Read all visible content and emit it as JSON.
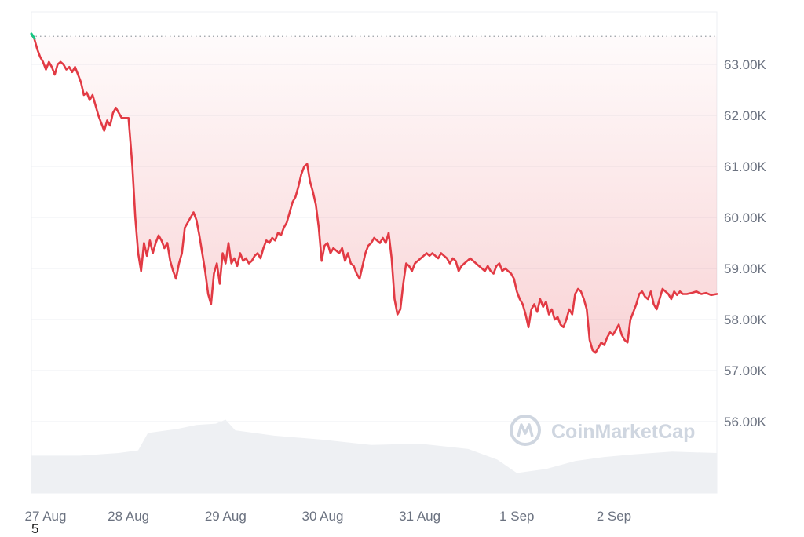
{
  "chart_data": {
    "type": "area",
    "title": "",
    "xlabel": "",
    "ylabel": "",
    "ylim": [
      55000,
      63700
    ],
    "y_ticks": [
      "63.00K",
      "62.00K",
      "61.00K",
      "60.00K",
      "59.00K",
      "58.00K",
      "57.00K",
      "56.00K"
    ],
    "y_tick_values": [
      63000,
      62000,
      61000,
      60000,
      59000,
      58000,
      57000,
      56000
    ],
    "x_ticks": [
      "27 Aug",
      "28 Aug",
      "29 Aug",
      "30 Aug",
      "31 Aug",
      "1 Sep",
      "2 Sep"
    ],
    "x_range_days": [
      0,
      7.06
    ],
    "reference_price": 63550,
    "grid": true,
    "series": [
      {
        "points": [
          [
            0.0,
            63600
          ],
          [
            0.03,
            63500
          ],
          [
            0.06,
            63300
          ],
          [
            0.09,
            63150
          ],
          [
            0.12,
            63050
          ],
          [
            0.15,
            62900
          ],
          [
            0.18,
            63050
          ],
          [
            0.21,
            62950
          ],
          [
            0.24,
            62800
          ],
          [
            0.27,
            63000
          ],
          [
            0.3,
            63050
          ],
          [
            0.33,
            63000
          ],
          [
            0.36,
            62900
          ],
          [
            0.39,
            62950
          ],
          [
            0.42,
            62850
          ],
          [
            0.45,
            62950
          ],
          [
            0.48,
            62800
          ],
          [
            0.51,
            62650
          ],
          [
            0.54,
            62400
          ],
          [
            0.57,
            62450
          ],
          [
            0.6,
            62300
          ],
          [
            0.63,
            62400
          ],
          [
            0.66,
            62200
          ],
          [
            0.69,
            62000
          ],
          [
            0.72,
            61850
          ],
          [
            0.75,
            61700
          ],
          [
            0.78,
            61900
          ],
          [
            0.81,
            61800
          ],
          [
            0.84,
            62050
          ],
          [
            0.87,
            62150
          ],
          [
            0.9,
            62050
          ],
          [
            0.93,
            61950
          ],
          [
            1.0,
            61950
          ],
          [
            1.04,
            61000
          ],
          [
            1.07,
            60000
          ],
          [
            1.1,
            59300
          ],
          [
            1.13,
            58950
          ],
          [
            1.16,
            59500
          ],
          [
            1.19,
            59250
          ],
          [
            1.22,
            59550
          ],
          [
            1.25,
            59300
          ],
          [
            1.28,
            59500
          ],
          [
            1.31,
            59650
          ],
          [
            1.34,
            59550
          ],
          [
            1.37,
            59400
          ],
          [
            1.4,
            59500
          ],
          [
            1.43,
            59150
          ],
          [
            1.46,
            58950
          ],
          [
            1.49,
            58800
          ],
          [
            1.52,
            59100
          ],
          [
            1.55,
            59300
          ],
          [
            1.58,
            59800
          ],
          [
            1.61,
            59900
          ],
          [
            1.64,
            60000
          ],
          [
            1.67,
            60100
          ],
          [
            1.7,
            59950
          ],
          [
            1.73,
            59650
          ],
          [
            1.76,
            59300
          ],
          [
            1.79,
            58950
          ],
          [
            1.82,
            58500
          ],
          [
            1.85,
            58300
          ],
          [
            1.88,
            58900
          ],
          [
            1.91,
            59100
          ],
          [
            1.94,
            58700
          ],
          [
            1.97,
            59300
          ],
          [
            2.0,
            59100
          ],
          [
            2.03,
            59500
          ],
          [
            2.06,
            59100
          ],
          [
            2.09,
            59200
          ],
          [
            2.12,
            59050
          ],
          [
            2.15,
            59300
          ],
          [
            2.18,
            59150
          ],
          [
            2.21,
            59200
          ],
          [
            2.24,
            59100
          ],
          [
            2.27,
            59150
          ],
          [
            2.3,
            59250
          ],
          [
            2.33,
            59300
          ],
          [
            2.36,
            59200
          ],
          [
            2.39,
            59400
          ],
          [
            2.42,
            59550
          ],
          [
            2.45,
            59500
          ],
          [
            2.48,
            59600
          ],
          [
            2.51,
            59550
          ],
          [
            2.54,
            59700
          ],
          [
            2.57,
            59650
          ],
          [
            2.6,
            59800
          ],
          [
            2.63,
            59900
          ],
          [
            2.66,
            60100
          ],
          [
            2.69,
            60300
          ],
          [
            2.72,
            60400
          ],
          [
            2.75,
            60600
          ],
          [
            2.78,
            60850
          ],
          [
            2.81,
            61000
          ],
          [
            2.84,
            61050
          ],
          [
            2.87,
            60700
          ],
          [
            2.9,
            60500
          ],
          [
            2.93,
            60250
          ],
          [
            2.96,
            59800
          ],
          [
            2.99,
            59150
          ],
          [
            3.02,
            59450
          ],
          [
            3.05,
            59500
          ],
          [
            3.08,
            59300
          ],
          [
            3.11,
            59400
          ],
          [
            3.14,
            59350
          ],
          [
            3.17,
            59300
          ],
          [
            3.2,
            59400
          ],
          [
            3.23,
            59150
          ],
          [
            3.26,
            59300
          ],
          [
            3.29,
            59100
          ],
          [
            3.32,
            59050
          ],
          [
            3.35,
            58900
          ],
          [
            3.38,
            58800
          ],
          [
            3.41,
            59050
          ],
          [
            3.44,
            59300
          ],
          [
            3.47,
            59450
          ],
          [
            3.5,
            59500
          ],
          [
            3.53,
            59600
          ],
          [
            3.56,
            59550
          ],
          [
            3.59,
            59500
          ],
          [
            3.62,
            59600
          ],
          [
            3.65,
            59500
          ],
          [
            3.68,
            59700
          ],
          [
            3.71,
            59200
          ],
          [
            3.74,
            58400
          ],
          [
            3.77,
            58100
          ],
          [
            3.8,
            58200
          ],
          [
            3.83,
            58700
          ],
          [
            3.86,
            59100
          ],
          [
            3.89,
            59050
          ],
          [
            3.92,
            58950
          ],
          [
            3.95,
            59100
          ],
          [
            3.98,
            59150
          ],
          [
            4.01,
            59200
          ],
          [
            4.04,
            59250
          ],
          [
            4.07,
            59300
          ],
          [
            4.1,
            59250
          ],
          [
            4.13,
            59300
          ],
          [
            4.16,
            59250
          ],
          [
            4.19,
            59200
          ],
          [
            4.22,
            59300
          ],
          [
            4.25,
            59250
          ],
          [
            4.28,
            59200
          ],
          [
            4.31,
            59100
          ],
          [
            4.34,
            59200
          ],
          [
            4.37,
            59150
          ],
          [
            4.4,
            58950
          ],
          [
            4.43,
            59050
          ],
          [
            4.46,
            59100
          ],
          [
            4.49,
            59150
          ],
          [
            4.52,
            59200
          ],
          [
            4.55,
            59150
          ],
          [
            4.58,
            59100
          ],
          [
            4.61,
            59050
          ],
          [
            4.64,
            59000
          ],
          [
            4.67,
            58950
          ],
          [
            4.7,
            59050
          ],
          [
            4.73,
            58950
          ],
          [
            4.76,
            58900
          ],
          [
            4.79,
            59050
          ],
          [
            4.82,
            59100
          ],
          [
            4.85,
            58950
          ],
          [
            4.88,
            59000
          ],
          [
            4.91,
            58950
          ],
          [
            4.94,
            58900
          ],
          [
            4.97,
            58800
          ],
          [
            5.0,
            58550
          ],
          [
            5.03,
            58400
          ],
          [
            5.06,
            58300
          ],
          [
            5.09,
            58100
          ],
          [
            5.12,
            57850
          ],
          [
            5.15,
            58200
          ],
          [
            5.18,
            58300
          ],
          [
            5.21,
            58150
          ],
          [
            5.24,
            58400
          ],
          [
            5.27,
            58250
          ],
          [
            5.3,
            58350
          ],
          [
            5.33,
            58100
          ],
          [
            5.36,
            58200
          ],
          [
            5.39,
            58000
          ],
          [
            5.42,
            58050
          ],
          [
            5.45,
            57900
          ],
          [
            5.48,
            57850
          ],
          [
            5.51,
            58000
          ],
          [
            5.54,
            58200
          ],
          [
            5.57,
            58100
          ],
          [
            5.6,
            58500
          ],
          [
            5.63,
            58600
          ],
          [
            5.66,
            58550
          ],
          [
            5.69,
            58400
          ],
          [
            5.72,
            58200
          ],
          [
            5.75,
            57600
          ],
          [
            5.78,
            57400
          ],
          [
            5.81,
            57350
          ],
          [
            5.84,
            57450
          ],
          [
            5.87,
            57550
          ],
          [
            5.9,
            57500
          ],
          [
            5.93,
            57650
          ],
          [
            5.96,
            57750
          ],
          [
            5.99,
            57700
          ],
          [
            6.02,
            57800
          ],
          [
            6.05,
            57900
          ],
          [
            6.08,
            57700
          ],
          [
            6.11,
            57600
          ],
          [
            6.14,
            57550
          ],
          [
            6.17,
            58000
          ],
          [
            6.2,
            58150
          ],
          [
            6.23,
            58300
          ],
          [
            6.26,
            58500
          ],
          [
            6.29,
            58550
          ],
          [
            6.32,
            58450
          ],
          [
            6.35,
            58400
          ],
          [
            6.38,
            58550
          ],
          [
            6.41,
            58300
          ],
          [
            6.44,
            58200
          ],
          [
            6.47,
            58400
          ],
          [
            6.5,
            58600
          ],
          [
            6.53,
            58550
          ],
          [
            6.56,
            58500
          ],
          [
            6.59,
            58400
          ],
          [
            6.62,
            58550
          ],
          [
            6.65,
            58480
          ],
          [
            6.68,
            58550
          ],
          [
            6.71,
            58500
          ],
          [
            6.75,
            58500
          ],
          [
            6.8,
            58520
          ],
          [
            6.85,
            58550
          ],
          [
            6.9,
            58500
          ],
          [
            6.95,
            58520
          ],
          [
            7.0,
            58480
          ],
          [
            7.06,
            58500
          ]
        ]
      }
    ],
    "volume": [
      [
        0.0,
        0.28
      ],
      [
        0.5,
        0.28
      ],
      [
        0.9,
        0.3
      ],
      [
        1.1,
        0.32
      ],
      [
        1.2,
        0.45
      ],
      [
        1.5,
        0.48
      ],
      [
        1.7,
        0.51
      ],
      [
        1.9,
        0.52
      ],
      [
        2.0,
        0.55
      ],
      [
        2.1,
        0.47
      ],
      [
        2.5,
        0.43
      ],
      [
        3.0,
        0.4
      ],
      [
        3.5,
        0.36
      ],
      [
        4.0,
        0.37
      ],
      [
        4.5,
        0.33
      ],
      [
        4.8,
        0.25
      ],
      [
        5.0,
        0.15
      ],
      [
        5.3,
        0.18
      ],
      [
        5.6,
        0.24
      ],
      [
        5.9,
        0.27
      ],
      [
        6.2,
        0.29
      ],
      [
        6.6,
        0.31
      ],
      [
        7.06,
        0.3
      ]
    ]
  },
  "watermark": {
    "text": "CoinMarketCap",
    "logo_icon": "coinmarketcap-logo-icon"
  },
  "footer_text": "5",
  "colors": {
    "line": "#e23a44",
    "start_marker": "#16c784",
    "volume": "#eef0f3",
    "grid": "#eceff3"
  }
}
